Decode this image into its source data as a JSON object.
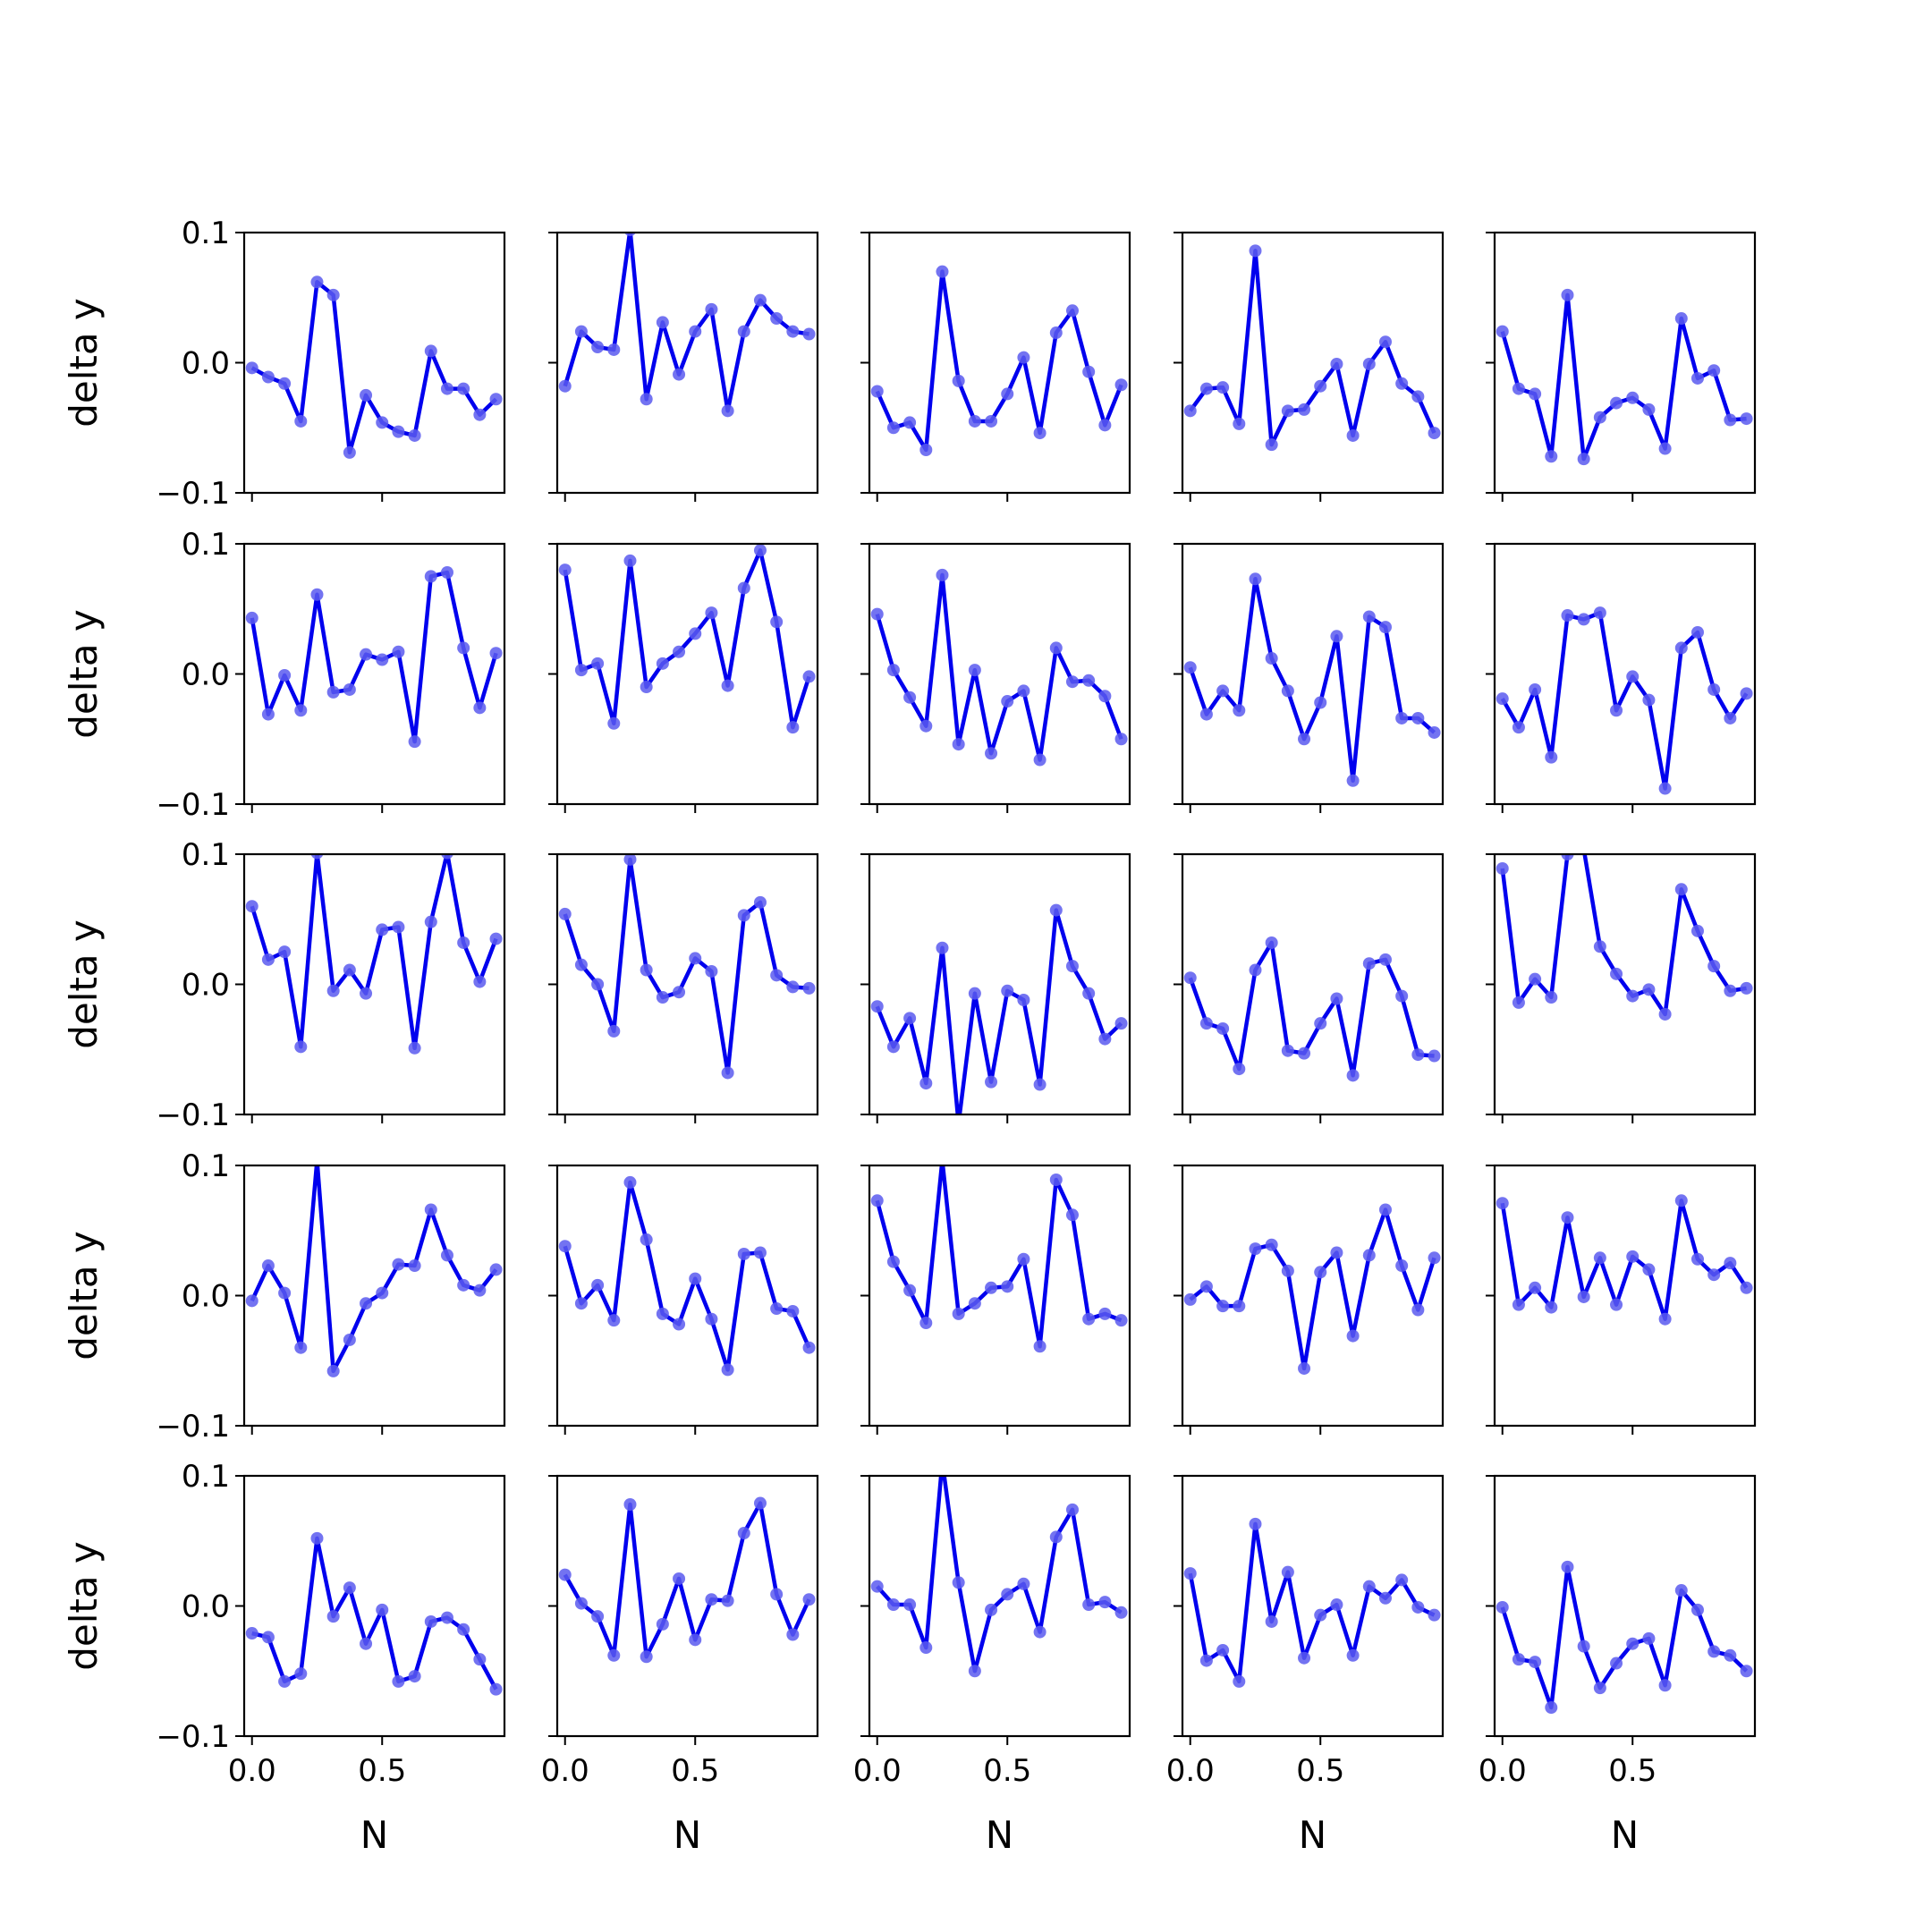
{
  "chart_data": {
    "type": "line",
    "layout": {
      "rows": 5,
      "cols": 5
    },
    "xlabel": "N",
    "ylabel": "delta y",
    "xlim": [
      -0.03,
      0.97
    ],
    "ylim": [
      -0.1,
      0.1
    ],
    "x_ticks": [
      0.0,
      0.5
    ],
    "x_tick_labels": [
      "0.0",
      "0.5"
    ],
    "y_ticks": [
      0.1,
      0.0,
      -0.1
    ],
    "y_tick_labels": [
      "0.1",
      "0.0",
      "−0.1"
    ],
    "x": [
      0.0,
      0.0625,
      0.125,
      0.1875,
      0.25,
      0.3125,
      0.375,
      0.4375,
      0.5,
      0.5625,
      0.625,
      0.6875,
      0.75,
      0.8125,
      0.875,
      0.9375
    ],
    "line_color": "#0000ee",
    "marker_color": "#5b5bee",
    "grid": false,
    "panels": [
      [
        -0.004,
        -0.011,
        -0.016,
        -0.045,
        0.062,
        0.052,
        -0.069,
        -0.025,
        -0.046,
        -0.053,
        -0.056,
        0.009,
        -0.02,
        -0.02,
        -0.04,
        -0.028
      ],
      [
        -0.018,
        0.024,
        0.012,
        0.01,
        0.102,
        -0.028,
        0.031,
        -0.009,
        0.024,
        0.041,
        -0.037,
        0.024,
        0.048,
        0.034,
        0.024,
        0.022
      ],
      [
        -0.022,
        -0.05,
        -0.046,
        -0.067,
        0.07,
        -0.014,
        -0.045,
        -0.045,
        -0.024,
        0.004,
        -0.054,
        0.023,
        0.04,
        -0.007,
        -0.048,
        -0.017
      ],
      [
        -0.037,
        -0.02,
        -0.019,
        -0.047,
        0.086,
        -0.063,
        -0.037,
        -0.036,
        -0.018,
        -0.001,
        -0.056,
        -0.001,
        0.016,
        -0.016,
        -0.026,
        -0.054
      ],
      [
        0.024,
        -0.02,
        -0.024,
        -0.072,
        0.052,
        -0.074,
        -0.042,
        -0.031,
        -0.027,
        -0.036,
        -0.066,
        0.034,
        -0.012,
        -0.006,
        -0.044,
        -0.043
      ],
      [
        0.043,
        -0.031,
        -0.001,
        -0.028,
        0.061,
        -0.014,
        -0.012,
        0.015,
        0.011,
        0.017,
        -0.052,
        0.075,
        0.078,
        0.02,
        -0.026,
        0.016
      ],
      [
        0.08,
        0.003,
        0.008,
        -0.038,
        0.087,
        -0.01,
        0.008,
        0.017,
        0.031,
        0.047,
        -0.009,
        0.066,
        0.095,
        0.04,
        -0.041,
        -0.002
      ],
      [
        0.046,
        0.003,
        -0.018,
        -0.04,
        0.076,
        -0.054,
        0.003,
        -0.061,
        -0.021,
        -0.013,
        -0.066,
        0.02,
        -0.006,
        -0.005,
        -0.017,
        -0.05
      ],
      [
        0.005,
        -0.031,
        -0.013,
        -0.028,
        0.073,
        0.012,
        -0.013,
        -0.05,
        -0.022,
        0.029,
        -0.082,
        0.044,
        0.036,
        -0.034,
        -0.034,
        -0.045
      ],
      [
        -0.019,
        -0.041,
        -0.012,
        -0.064,
        0.045,
        0.042,
        0.047,
        -0.028,
        -0.002,
        -0.02,
        -0.088,
        0.02,
        0.032,
        -0.012,
        -0.034,
        -0.015
      ],
      [
        0.06,
        0.019,
        0.025,
        -0.048,
        0.101,
        -0.005,
        0.011,
        -0.007,
        0.042,
        0.044,
        -0.049,
        0.048,
        0.101,
        0.032,
        0.002,
        0.035
      ],
      [
        0.054,
        0.015,
        0.0,
        -0.036,
        0.096,
        0.011,
        -0.01,
        -0.006,
        0.02,
        0.01,
        -0.068,
        0.053,
        0.063,
        0.007,
        -0.002,
        -0.003
      ],
      [
        -0.017,
        -0.048,
        -0.026,
        -0.076,
        0.028,
        -0.107,
        -0.007,
        -0.075,
        -0.005,
        -0.012,
        -0.077,
        0.057,
        0.014,
        -0.007,
        -0.042,
        -0.03
      ],
      [
        0.005,
        -0.03,
        -0.034,
        -0.065,
        0.011,
        0.032,
        -0.051,
        -0.053,
        -0.03,
        -0.011,
        -0.07,
        0.016,
        0.019,
        -0.009,
        -0.054,
        -0.055
      ],
      [
        0.089,
        -0.014,
        0.004,
        -0.01,
        0.1,
        0.104,
        0.029,
        0.008,
        -0.009,
        -0.004,
        -0.023,
        0.073,
        0.041,
        0.014,
        -0.005,
        -0.003
      ],
      [
        -0.004,
        0.023,
        0.002,
        -0.04,
        0.104,
        -0.058,
        -0.034,
        -0.006,
        0.002,
        0.024,
        0.023,
        0.066,
        0.031,
        0.008,
        0.004,
        0.02
      ],
      [
        0.038,
        -0.006,
        0.008,
        -0.019,
        0.087,
        0.043,
        -0.014,
        -0.022,
        0.013,
        -0.018,
        -0.057,
        0.032,
        0.033,
        -0.01,
        -0.012,
        -0.04
      ],
      [
        0.073,
        0.026,
        0.004,
        -0.021,
        0.104,
        -0.014,
        -0.006,
        0.006,
        0.007,
        0.028,
        -0.039,
        0.089,
        0.062,
        -0.018,
        -0.014,
        -0.019
      ],
      [
        -0.003,
        0.007,
        -0.008,
        -0.008,
        0.036,
        0.039,
        0.019,
        -0.056,
        0.018,
        0.033,
        -0.031,
        0.031,
        0.066,
        0.023,
        -0.011,
        0.029
      ],
      [
        0.071,
        -0.007,
        0.006,
        -0.009,
        0.06,
        -0.001,
        0.029,
        -0.007,
        0.03,
        0.02,
        -0.018,
        0.073,
        0.028,
        0.016,
        0.025,
        0.006
      ],
      [
        -0.021,
        -0.024,
        -0.058,
        -0.052,
        0.052,
        -0.008,
        0.014,
        -0.029,
        -0.003,
        -0.058,
        -0.054,
        -0.012,
        -0.009,
        -0.018,
        -0.041,
        -0.064
      ],
      [
        0.024,
        0.002,
        -0.008,
        -0.038,
        0.078,
        -0.039,
        -0.014,
        0.021,
        -0.026,
        0.005,
        0.004,
        0.056,
        0.079,
        0.009,
        -0.022,
        0.005
      ],
      [
        0.015,
        0.001,
        0.001,
        -0.032,
        0.111,
        0.018,
        -0.05,
        -0.003,
        0.009,
        0.017,
        -0.02,
        0.053,
        0.074,
        0.001,
        0.003,
        -0.005
      ],
      [
        0.025,
        -0.042,
        -0.034,
        -0.058,
        0.063,
        -0.012,
        0.026,
        -0.04,
        -0.007,
        0.001,
        -0.038,
        0.015,
        0.006,
        0.02,
        -0.001,
        -0.007
      ],
      [
        -0.001,
        -0.041,
        -0.043,
        -0.078,
        0.03,
        -0.031,
        -0.063,
        -0.044,
        -0.029,
        -0.025,
        -0.061,
        0.012,
        -0.003,
        -0.035,
        -0.038,
        -0.05
      ]
    ]
  }
}
